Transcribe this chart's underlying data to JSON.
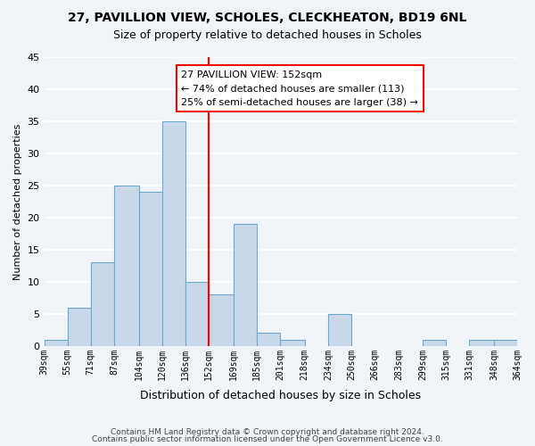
{
  "title1": "27, PAVILLION VIEW, SCHOLES, CLECKHEATON, BD19 6NL",
  "title2": "Size of property relative to detached houses in Scholes",
  "xlabel": "Distribution of detached houses by size in Scholes",
  "ylabel": "Number of detached properties",
  "bar_color": "#c8d8e8",
  "bar_edge_color": "#6fa8c8",
  "reference_line_x": 152,
  "reference_line_color": "red",
  "bin_edges": [
    39,
    55,
    71,
    87,
    104,
    120,
    136,
    152,
    169,
    185,
    201,
    218,
    234,
    250,
    266,
    283,
    299,
    315,
    331,
    348,
    364
  ],
  "bin_labels": [
    "39sqm",
    "55sqm",
    "71sqm",
    "87sqm",
    "104sqm",
    "120sqm",
    "136sqm",
    "152sqm",
    "169sqm",
    "185sqm",
    "201sqm",
    "218sqm",
    "234sqm",
    "250sqm",
    "266sqm",
    "283sqm",
    "299sqm",
    "315sqm",
    "331sqm",
    "348sqm",
    "364sqm"
  ],
  "bar_heights": [
    1,
    6,
    13,
    25,
    24,
    35,
    10,
    8,
    19,
    2,
    1,
    0,
    5,
    0,
    0,
    0,
    1,
    0,
    1,
    1
  ],
  "ylim": [
    0,
    45
  ],
  "yticks": [
    0,
    5,
    10,
    15,
    20,
    25,
    30,
    35,
    40,
    45
  ],
  "annotation_title": "27 PAVILLION VIEW: 152sqm",
  "annotation_line1": "← 74% of detached houses are smaller (113)",
  "annotation_line2": "25% of semi-detached houses are larger (38) →",
  "footer1": "Contains HM Land Registry data © Crown copyright and database right 2024.",
  "footer2": "Contains public sector information licensed under the Open Government Licence v3.0.",
  "background_color": "#f0f4f8",
  "grid_color": "white",
  "annotation_box_color": "white",
  "annotation_box_edge_color": "red"
}
